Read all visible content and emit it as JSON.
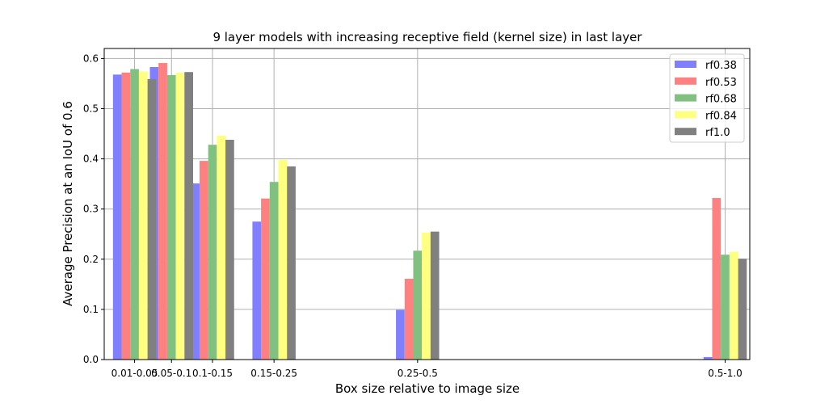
{
  "chart_data": {
    "type": "bar",
    "title": "9 layer models with increasing receptive field (kernel size) in last layer",
    "xlabel": "Box size relative to image size",
    "ylabel": "Average Precision at an IoU of 0.6",
    "ylim": [
      0,
      0.62
    ],
    "yticks": [
      "0.0",
      "0.1",
      "0.2",
      "0.3",
      "0.4",
      "0.5",
      "0.6"
    ],
    "grid": true,
    "legend_position": "top-right",
    "x_positions": [
      0.03,
      0.075,
      0.125,
      0.2,
      0.375,
      0.75
    ],
    "xlim": [
      -0.007,
      0.78
    ],
    "categories": [
      "0.01-0.05",
      "0.05-0.1",
      "0.1-0.15",
      "0.15-0.25",
      "0.25-0.5",
      "0.5-1.0"
    ],
    "series": [
      {
        "name": "rf0.38",
        "color": "#8080ff",
        "values": [
          0.568,
          0.583,
          0.351,
          0.275,
          0.099,
          0.005
        ]
      },
      {
        "name": "rf0.53",
        "color": "#ff8080",
        "values": [
          0.572,
          0.591,
          0.396,
          0.321,
          0.161,
          0.322
        ]
      },
      {
        "name": "rf0.68",
        "color": "#80c080",
        "values": [
          0.579,
          0.567,
          0.428,
          0.354,
          0.217,
          0.209
        ]
      },
      {
        "name": "rf0.84",
        "color": "#ffff80",
        "values": [
          0.574,
          0.572,
          0.446,
          0.398,
          0.253,
          0.215
        ]
      },
      {
        "name": "rf1.0",
        "color": "#808080",
        "values": [
          0.559,
          0.573,
          0.438,
          0.385,
          0.255,
          0.201
        ]
      }
    ]
  }
}
